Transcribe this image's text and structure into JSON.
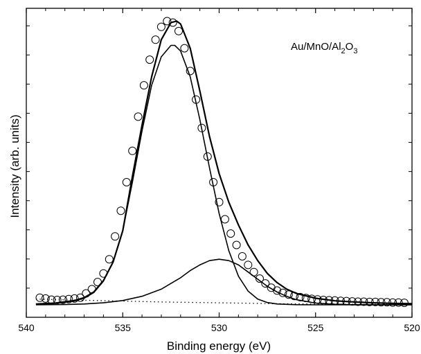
{
  "chart_data": {
    "type": "line",
    "title": "",
    "annotation": {
      "main": "Au/MnO/Al",
      "sub1": "2",
      "mid": "O",
      "sub2": "3"
    },
    "xlabel": "Binding energy (eV)",
    "ylabel": "Intensity (arb. units)",
    "xlim": [
      540,
      520
    ],
    "ylim": [
      0,
      1.04
    ],
    "x_reversed": true,
    "y_ticklabels_shown": false,
    "grid": false,
    "legend": "none",
    "x_ticks": [
      {
        "value": 540,
        "label": "540"
      },
      {
        "value": 535,
        "label": "535"
      },
      {
        "value": 530,
        "label": "530"
      },
      {
        "value": 525,
        "label": "525"
      },
      {
        "value": 520,
        "label": "520"
      }
    ],
    "series": [
      {
        "style": "open-circles",
        "x": [
          539.3,
          539.0,
          538.7,
          538.4,
          538.1,
          537.8,
          537.5,
          537.2,
          536.9,
          536.6,
          536.3,
          536.0,
          535.7,
          535.4,
          535.1,
          534.8,
          534.5,
          534.2,
          533.9,
          533.6,
          533.3,
          533.0,
          532.7,
          532.4,
          532.1,
          531.8,
          531.5,
          531.2,
          530.9,
          530.6,
          530.3,
          530.0,
          529.7,
          529.4,
          529.1,
          528.8,
          528.5,
          528.2,
          527.9,
          527.6,
          527.3,
          527.0,
          526.7,
          526.4,
          526.1,
          525.8,
          525.5,
          525.2,
          524.9,
          524.6,
          524.3,
          524.0,
          523.7,
          523.4,
          523.1,
          522.8,
          522.5,
          522.2,
          521.9,
          521.6,
          521.3,
          521.0,
          520.7,
          520.4
        ],
        "y": [
          0.025,
          0.022,
          0.018,
          0.017,
          0.018,
          0.02,
          0.022,
          0.025,
          0.04,
          0.055,
          0.08,
          0.11,
          0.16,
          0.24,
          0.33,
          0.43,
          0.54,
          0.66,
          0.77,
          0.86,
          0.93,
          0.975,
          0.995,
          0.99,
          0.96,
          0.9,
          0.82,
          0.72,
          0.62,
          0.52,
          0.43,
          0.36,
          0.3,
          0.25,
          0.21,
          0.17,
          0.14,
          0.115,
          0.092,
          0.075,
          0.06,
          0.05,
          0.042,
          0.036,
          0.031,
          0.027,
          0.024,
          0.021,
          0.019,
          0.017,
          0.016,
          0.015,
          0.014,
          0.013,
          0.012,
          0.011,
          0.011,
          0.01,
          0.01,
          0.009,
          0.009,
          0.008,
          0.008,
          0.007
        ]
      },
      {
        "style": "solid-thick",
        "x": [
          539.5,
          538.5,
          537.5,
          537.0,
          536.5,
          536.0,
          535.5,
          535.0,
          534.5,
          534.0,
          533.5,
          533.0,
          532.5,
          532.2,
          532.0,
          531.5,
          531.0,
          530.5,
          530.0,
          529.5,
          529.0,
          528.5,
          528.0,
          527.5,
          527.0,
          526.5,
          526.0,
          525.0,
          524.0,
          523.0,
          522.0,
          521.0,
          520.0
        ],
        "y": [
          0.003,
          0.006,
          0.015,
          0.025,
          0.045,
          0.085,
          0.15,
          0.26,
          0.45,
          0.63,
          0.8,
          0.93,
          0.99,
          0.995,
          0.985,
          0.9,
          0.75,
          0.59,
          0.46,
          0.36,
          0.28,
          0.21,
          0.155,
          0.11,
          0.078,
          0.055,
          0.04,
          0.023,
          0.014,
          0.01,
          0.007,
          0.005,
          0.004
        ]
      },
      {
        "style": "solid-thin",
        "x": [
          539.5,
          538.5,
          537.5,
          537.0,
          536.5,
          536.0,
          535.5,
          535.0,
          534.5,
          534.0,
          533.5,
          533.0,
          532.5,
          532.3,
          532.0,
          531.5,
          531.0,
          530.5,
          530.0,
          529.5,
          529.0,
          528.5,
          528.0,
          527.5,
          527.0,
          526.0,
          525.0,
          520.0
        ],
        "y": [
          0.002,
          0.005,
          0.013,
          0.023,
          0.043,
          0.083,
          0.15,
          0.26,
          0.43,
          0.61,
          0.77,
          0.87,
          0.91,
          0.91,
          0.89,
          0.8,
          0.65,
          0.48,
          0.32,
          0.19,
          0.1,
          0.048,
          0.02,
          0.008,
          0.003,
          0.0005,
          0.0,
          0.0
        ]
      },
      {
        "style": "solid-thin",
        "x": [
          539.5,
          538.0,
          537.0,
          536.0,
          535.0,
          534.0,
          533.0,
          532.0,
          531.5,
          531.0,
          530.5,
          530.0,
          529.5,
          529.0,
          528.5,
          528.0,
          527.5,
          527.0,
          526.5,
          526.0,
          525.0,
          524.0,
          523.0,
          522.0,
          520.0
        ],
        "y": [
          0.0,
          0.001,
          0.003,
          0.007,
          0.015,
          0.03,
          0.055,
          0.095,
          0.12,
          0.14,
          0.155,
          0.16,
          0.155,
          0.14,
          0.115,
          0.09,
          0.065,
          0.045,
          0.03,
          0.018,
          0.006,
          0.002,
          0.0005,
          0.0,
          0.0
        ]
      },
      {
        "style": "dotted",
        "x": [
          539.5,
          537.0,
          535.0,
          533.0,
          531.0,
          529.0,
          527.0,
          525.0,
          523.0,
          520.0
        ],
        "y": [
          0.02,
          0.016,
          0.013,
          0.01,
          0.008,
          0.006,
          0.004,
          0.003,
          0.002,
          0.001
        ]
      }
    ]
  }
}
